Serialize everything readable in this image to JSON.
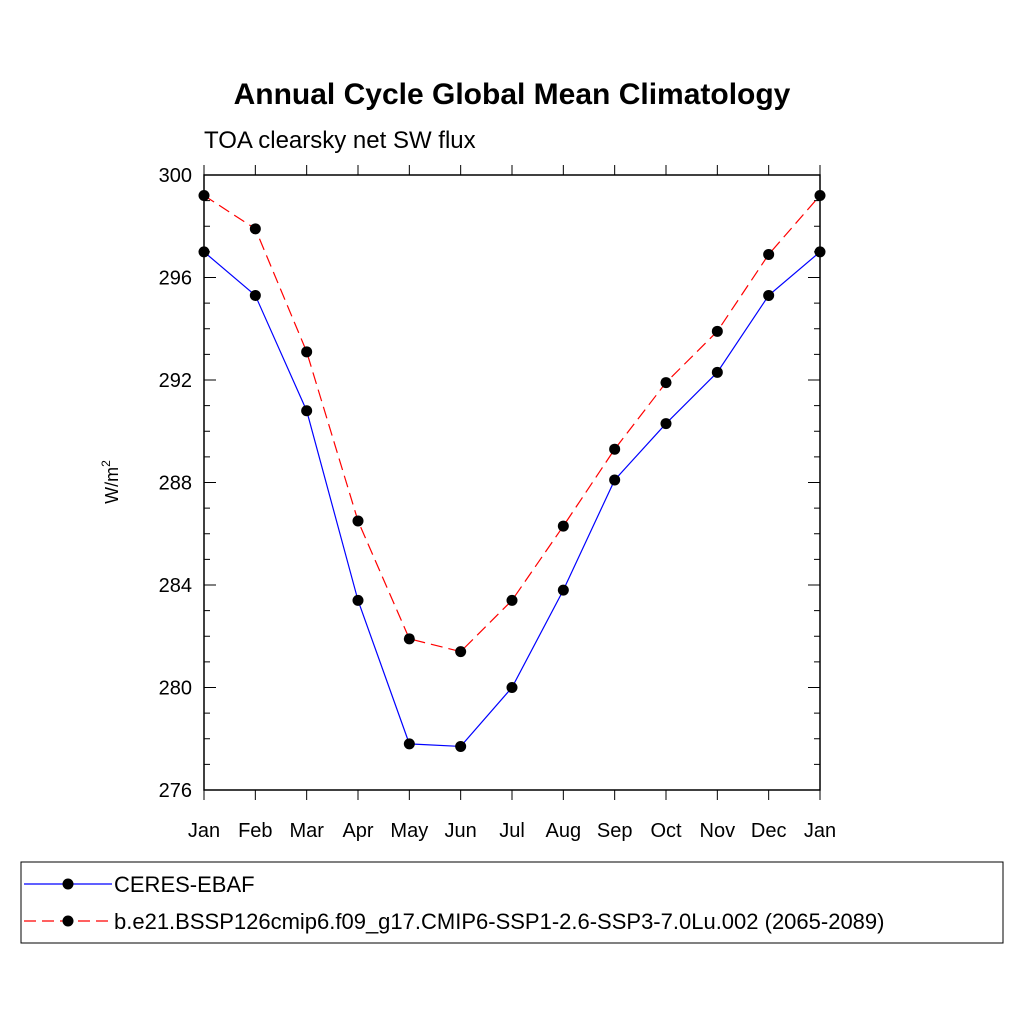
{
  "chart_data": {
    "type": "line",
    "title": "Annual Cycle Global Mean Climatology",
    "subtitle": "TOA clearsky net SW flux",
    "ylabel": "W/m",
    "ylabel_superscript": "2",
    "ylim": [
      276,
      300
    ],
    "yticks": [
      276,
      280,
      284,
      288,
      292,
      296,
      300
    ],
    "categories": [
      "Jan",
      "Feb",
      "Mar",
      "Apr",
      "May",
      "Jun",
      "Jul",
      "Aug",
      "Sep",
      "Oct",
      "Nov",
      "Dec",
      "Jan"
    ],
    "grid": false,
    "legend_position": "bottom",
    "series": [
      {
        "name": "CERES-EBAF",
        "color": "#0000ff",
        "dash": "solid",
        "marker": "filled-circle",
        "values": [
          297.0,
          295.3,
          290.8,
          283.4,
          277.8,
          277.7,
          280.0,
          283.8,
          288.1,
          290.3,
          292.3,
          295.3,
          297.0
        ]
      },
      {
        "name": "b.e21.BSSP126cmip6.f09_g17.CMIP6-SSP1-2.6-SSP3-7.0Lu.002 (2065-2089)",
        "color": "#ff0000",
        "dash": "dashed",
        "marker": "filled-circle",
        "values": [
          299.2,
          297.9,
          293.1,
          286.5,
          281.9,
          281.4,
          283.4,
          286.3,
          289.3,
          291.9,
          293.9,
          296.9,
          299.2
        ]
      }
    ]
  }
}
